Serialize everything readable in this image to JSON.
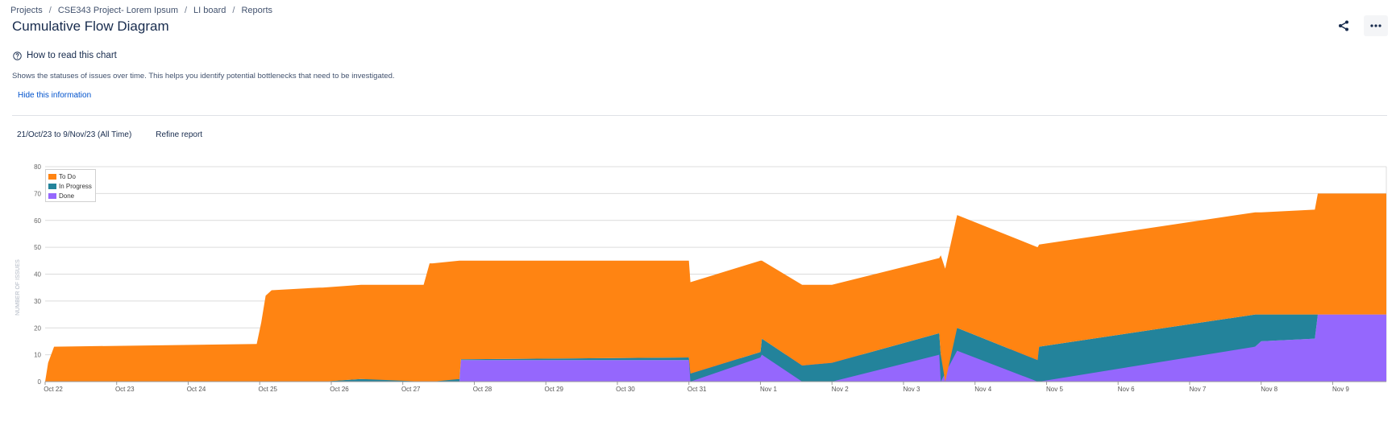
{
  "breadcrumb": {
    "items": [
      "Projects",
      "CSE343 Project- Lorem Ipsum",
      "LI board",
      "Reports"
    ],
    "separator": "/"
  },
  "page": {
    "title": "Cumulative Flow Diagram"
  },
  "header_actions": {
    "share_icon": "share-icon",
    "more_icon": "more-icon"
  },
  "help": {
    "icon": "question-circle-icon",
    "title": "How to read this chart",
    "description": "Shows the statuses of issues over time. This helps you identify potential bottlenecks that need to be investigated.",
    "hide_link": "Hide this information"
  },
  "filters": {
    "date_range": "21/Oct/23 to 9/Nov/23 (All Time)",
    "refine": "Refine report"
  },
  "chart_data": {
    "type": "area",
    "stacked": true,
    "title": "",
    "xlabel": "",
    "ylabel": "NUMBER OF ISSUES",
    "ylim": [
      0,
      80
    ],
    "yticks": [
      0,
      10,
      20,
      30,
      40,
      50,
      60,
      70,
      80
    ],
    "xlim": [
      "2023-10-22",
      "2023-11-09T18:00"
    ],
    "xticks": [
      "Oct 22",
      "Oct 23",
      "Oct 24",
      "Oct 25",
      "Oct 26",
      "Oct 27",
      "Oct 28",
      "Oct 29",
      "Oct 30",
      "Oct 31",
      "Nov 1",
      "Nov 2",
      "Nov 3",
      "Nov 4",
      "Nov 5",
      "Nov 6",
      "Nov 7",
      "Nov 8",
      "Nov 9"
    ],
    "grid": "horizontal",
    "legend_position": "top-left",
    "colors": {
      "To Do": "#ff8412",
      "In Progress": "#23839b",
      "Done": "#9567fd"
    },
    "series": [
      {
        "name": "Done",
        "points": [
          [
            "2023-10-22T00:00",
            0
          ],
          [
            "2023-10-27T19:00",
            0
          ],
          [
            "2023-10-27T19:30",
            8
          ],
          [
            "2023-10-31T00:00",
            8
          ],
          [
            "2023-11-01T00:00",
            9
          ],
          [
            "2023-11-01T00:30",
            10
          ],
          [
            "2023-11-03T12:00",
            10
          ],
          [
            "2023-11-03T18:00",
            11.5
          ],
          [
            "2023-11-04T00:00",
            12
          ],
          [
            "2023-11-07T22:00",
            13
          ],
          [
            "2023-11-08T00:00",
            15
          ],
          [
            "2023-11-08T18:00",
            16
          ],
          [
            "2023-11-08T19:00",
            25
          ],
          [
            "2023-11-09T18:00",
            25
          ]
        ]
      },
      {
        "name": "In Progress",
        "points": [
          [
            "2023-10-22T00:00",
            0
          ],
          [
            "2023-10-25T20:00",
            0
          ],
          [
            "2023-10-26T10:00",
            1
          ],
          [
            "2023-10-27T19:00",
            1
          ],
          [
            "2023-10-27T19:30",
            0.3
          ],
          [
            "2023-10-31T00:00",
            1
          ],
          [
            "2023-10-31T00:30",
            3
          ],
          [
            "2023-11-01T00:00",
            2
          ],
          [
            "2023-11-01T00:30",
            6
          ],
          [
            "2023-11-01T14:00",
            6
          ],
          [
            "2023-11-02T00:00",
            7
          ],
          [
            "2023-11-03T12:00",
            8
          ],
          [
            "2023-11-03T12:30",
            10
          ],
          [
            "2023-11-03T18:00",
            8.5
          ],
          [
            "2023-11-04T21:00",
            8
          ],
          [
            "2023-11-04T21:30",
            13
          ],
          [
            "2023-11-07T22:00",
            12
          ],
          [
            "2023-11-08T00:00",
            10
          ],
          [
            "2023-11-08T18:00",
            9
          ],
          [
            "2023-11-08T19:00",
            0
          ],
          [
            "2023-11-09T18:00",
            0
          ]
        ]
      },
      {
        "name": "To Do",
        "points": [
          [
            "2023-10-22T00:00",
            0
          ],
          [
            "2023-10-22T01:00",
            7
          ],
          [
            "2023-10-22T03:00",
            13
          ],
          [
            "2023-10-24T23:00",
            14
          ],
          [
            "2023-10-25T00:30",
            22
          ],
          [
            "2023-10-25T02:00",
            32
          ],
          [
            "2023-10-25T04:00",
            34
          ],
          [
            "2023-10-25T20:00",
            35
          ],
          [
            "2023-10-25T21:00",
            35
          ],
          [
            "2023-10-26T10:00",
            35
          ],
          [
            "2023-10-27T07:00",
            36
          ],
          [
            "2023-10-27T09:00",
            44
          ],
          [
            "2023-10-27T10:00",
            44
          ],
          [
            "2023-10-27T19:00",
            44
          ],
          [
            "2023-10-27T19:30",
            36.7
          ],
          [
            "2023-10-31T00:00",
            36
          ],
          [
            "2023-10-31T00:30",
            34
          ],
          [
            "2023-11-01T00:00",
            34
          ],
          [
            "2023-11-01T00:30",
            29
          ],
          [
            "2023-11-01T14:00",
            30
          ],
          [
            "2023-11-02T00:00",
            29
          ],
          [
            "2023-11-03T12:00",
            28
          ],
          [
            "2023-11-03T12:30",
            37
          ],
          [
            "2023-11-03T14:00",
            42
          ],
          [
            "2023-11-03T18:00",
            42
          ],
          [
            "2023-11-04T21:00",
            42
          ],
          [
            "2023-11-04T21:30",
            38
          ],
          [
            "2023-11-07T22:00",
            38
          ],
          [
            "2023-11-08T00:00",
            38
          ],
          [
            "2023-11-08T18:00",
            39
          ],
          [
            "2023-11-08T19:00",
            45
          ],
          [
            "2023-11-09T18:00",
            45
          ]
        ]
      }
    ]
  }
}
